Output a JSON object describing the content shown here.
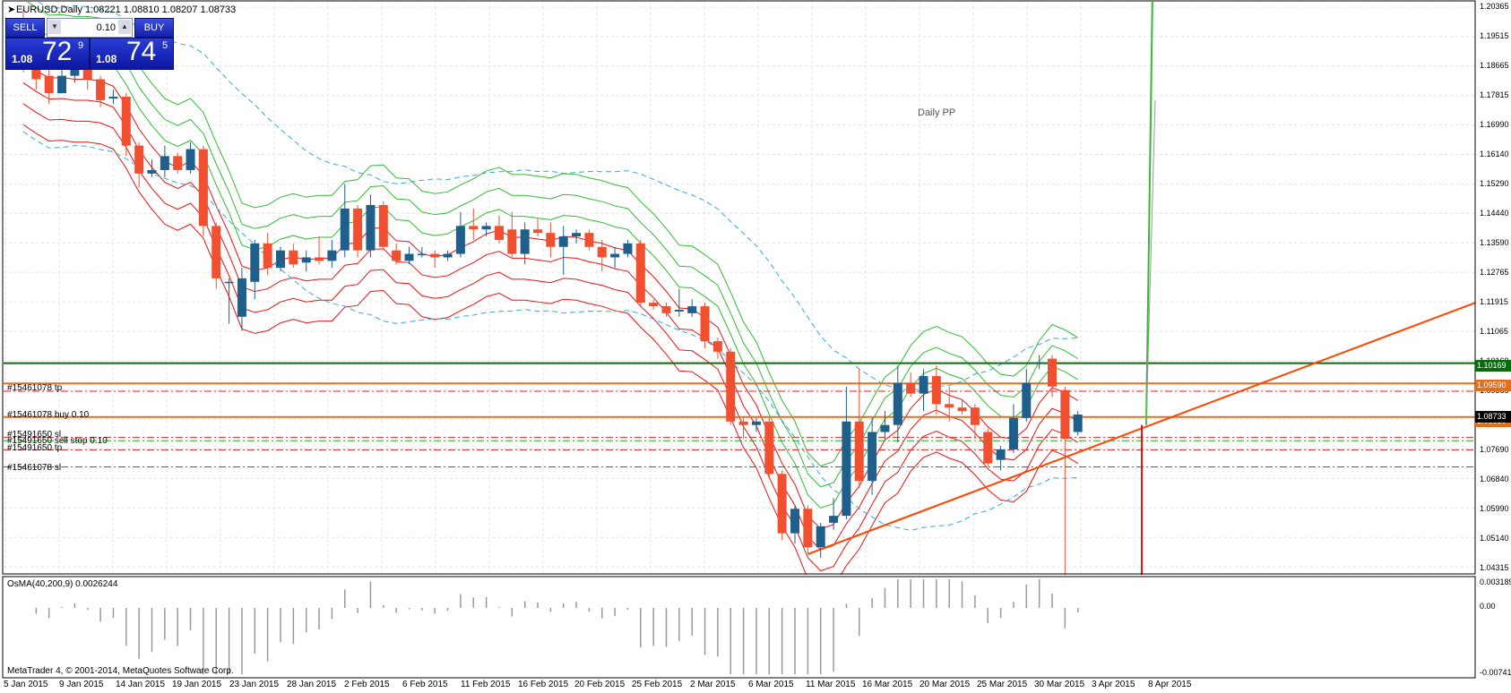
{
  "chart_title": "EURUSD,Daily  1.08221 1.08810 1.08207 1.08733",
  "trade_panel": {
    "sell_label": "SELL",
    "buy_label": "BUY",
    "lot_value": "0.10",
    "bid": {
      "small": "1.08",
      "big": "72",
      "sup": "9"
    },
    "ask": {
      "small": "1.08",
      "big": "74",
      "sup": "5"
    }
  },
  "indicator_label": "Daily PP",
  "order_labels": [
    {
      "text": "#15461078 tp"
    },
    {
      "text": "#15461078 buy 0.10"
    },
    {
      "text": "#15491650 sl"
    },
    {
      "text": "#15491650 sell stop 0.10"
    },
    {
      "text": "#15491650 tp"
    },
    {
      "text": "#15461078 sl"
    }
  ],
  "price_tags": [
    {
      "text": "1.10169",
      "color": "#0a6b0a"
    },
    {
      "text": "1.09590",
      "color": "#e07020"
    },
    {
      "text": "1.08630",
      "color": "#e07020"
    },
    {
      "text": "1.08733",
      "color": "#000000"
    }
  ],
  "y_axis": [
    "1.20365",
    "1.19515",
    "1.18665",
    "1.17815",
    "1.16990",
    "1.16140",
    "1.15290",
    "1.14440",
    "1.13590",
    "1.12765",
    "1.11915",
    "1.11065",
    "1.10169",
    "1.09365",
    "1.08630",
    "1.07690",
    "1.06840",
    "1.05990",
    "1.05140",
    "1.04315"
  ],
  "x_axis": [
    "5 Jan 2015",
    "9 Jan 2015",
    "14 Jan 2015",
    "19 Jan 2015",
    "23 Jan 2015",
    "28 Jan 2015",
    "2 Feb 2015",
    "6 Feb 2015",
    "11 Feb 2015",
    "16 Feb 2015",
    "20 Feb 2015",
    "25 Feb 2015",
    "2 Mar 2015",
    "6 Mar 2015",
    "11 Mar 2015",
    "16 Mar 2015",
    "20 Mar 2015",
    "25 Mar 2015",
    "30 Mar 2015",
    "3 Apr 2015",
    "8 Apr 2015"
  ],
  "oscillator": {
    "title": "OsMA(40,200,9) 0.0026244",
    "y_axis": [
      "0.003189",
      "0.00",
      "-0.007414"
    ]
  },
  "copyright": "MetaTrader 4, © 2001-2014, MetaQuotes Software Corp.",
  "colors": {
    "bull": "#1f5f8b",
    "bear": "#f05030",
    "hline_green": "#0a6b0a",
    "hline_orange": "#e07020",
    "trendline": "#ff4500",
    "band_green": "#33bb33",
    "band_red": "#ee1111",
    "band_blue": "#33aadd"
  },
  "chart_data": {
    "type": "candlestick",
    "title": "EURUSD,Daily",
    "ylim": [
      1.04315,
      1.20365
    ],
    "candles": [
      {
        "o": 1.196,
        "h": 1.203,
        "l": 1.185,
        "c": 1.188
      },
      {
        "o": 1.188,
        "h": 1.19,
        "l": 1.18,
        "c": 1.183
      },
      {
        "o": 1.184,
        "h": 1.187,
        "l": 1.176,
        "c": 1.179
      },
      {
        "o": 1.179,
        "h": 1.186,
        "l": 1.179,
        "c": 1.184
      },
      {
        "o": 1.184,
        "h": 1.188,
        "l": 1.182,
        "c": 1.186
      },
      {
        "o": 1.186,
        "h": 1.188,
        "l": 1.18,
        "c": 1.183
      },
      {
        "o": 1.183,
        "h": 1.184,
        "l": 1.175,
        "c": 1.177
      },
      {
        "o": 1.1775,
        "h": 1.18,
        "l": 1.176,
        "c": 1.178
      },
      {
        "o": 1.178,
        "h": 1.179,
        "l": 1.161,
        "c": 1.164
      },
      {
        "o": 1.164,
        "h": 1.165,
        "l": 1.152,
        "c": 1.156
      },
      {
        "o": 1.156,
        "h": 1.16,
        "l": 1.155,
        "c": 1.157
      },
      {
        "o": 1.157,
        "h": 1.164,
        "l": 1.155,
        "c": 1.161
      },
      {
        "o": 1.161,
        "h": 1.162,
        "l": 1.156,
        "c": 1.157
      },
      {
        "o": 1.157,
        "h": 1.165,
        "l": 1.156,
        "c": 1.163
      },
      {
        "o": 1.163,
        "h": 1.164,
        "l": 1.138,
        "c": 1.141
      },
      {
        "o": 1.141,
        "h": 1.142,
        "l": 1.123,
        "c": 1.126
      },
      {
        "o": 1.125,
        "h": 1.126,
        "l": 1.113,
        "c": 1.125
      },
      {
        "o": 1.115,
        "h": 1.129,
        "l": 1.111,
        "c": 1.126
      },
      {
        "o": 1.125,
        "h": 1.137,
        "l": 1.12,
        "c": 1.136
      },
      {
        "o": 1.136,
        "h": 1.139,
        "l": 1.127,
        "c": 1.129
      },
      {
        "o": 1.129,
        "h": 1.135,
        "l": 1.128,
        "c": 1.134
      },
      {
        "o": 1.134,
        "h": 1.136,
        "l": 1.129,
        "c": 1.13
      },
      {
        "o": 1.1305,
        "h": 1.134,
        "l": 1.128,
        "c": 1.132
      },
      {
        "o": 1.132,
        "h": 1.138,
        "l": 1.13,
        "c": 1.131
      },
      {
        "o": 1.131,
        "h": 1.137,
        "l": 1.129,
        "c": 1.134
      },
      {
        "o": 1.134,
        "h": 1.153,
        "l": 1.132,
        "c": 1.146
      },
      {
        "o": 1.146,
        "h": 1.147,
        "l": 1.132,
        "c": 1.134
      },
      {
        "o": 1.134,
        "h": 1.15,
        "l": 1.132,
        "c": 1.147
      },
      {
        "o": 1.147,
        "h": 1.148,
        "l": 1.134,
        "c": 1.135
      },
      {
        "o": 1.134,
        "h": 1.136,
        "l": 1.13,
        "c": 1.131
      },
      {
        "o": 1.131,
        "h": 1.135,
        "l": 1.13,
        "c": 1.133
      },
      {
        "o": 1.133,
        "h": 1.135,
        "l": 1.132,
        "c": 1.133
      },
      {
        "o": 1.133,
        "h": 1.134,
        "l": 1.129,
        "c": 1.132
      },
      {
        "o": 1.132,
        "h": 1.134,
        "l": 1.131,
        "c": 1.133
      },
      {
        "o": 1.133,
        "h": 1.145,
        "l": 1.132,
        "c": 1.141
      },
      {
        "o": 1.141,
        "h": 1.146,
        "l": 1.137,
        "c": 1.14
      },
      {
        "o": 1.14,
        "h": 1.142,
        "l": 1.138,
        "c": 1.141
      },
      {
        "o": 1.141,
        "h": 1.144,
        "l": 1.136,
        "c": 1.137
      },
      {
        "o": 1.14,
        "h": 1.145,
        "l": 1.132,
        "c": 1.133
      },
      {
        "o": 1.133,
        "h": 1.142,
        "l": 1.13,
        "c": 1.14
      },
      {
        "o": 1.14,
        "h": 1.143,
        "l": 1.138,
        "c": 1.139
      },
      {
        "o": 1.139,
        "h": 1.142,
        "l": 1.132,
        "c": 1.135
      },
      {
        "o": 1.135,
        "h": 1.141,
        "l": 1.127,
        "c": 1.138
      },
      {
        "o": 1.138,
        "h": 1.14,
        "l": 1.136,
        "c": 1.139
      },
      {
        "o": 1.139,
        "h": 1.14,
        "l": 1.134,
        "c": 1.135
      },
      {
        "o": 1.135,
        "h": 1.137,
        "l": 1.128,
        "c": 1.132
      },
      {
        "o": 1.132,
        "h": 1.135,
        "l": 1.129,
        "c": 1.133
      },
      {
        "o": 1.133,
        "h": 1.137,
        "l": 1.132,
        "c": 1.136
      },
      {
        "o": 1.136,
        "h": 1.137,
        "l": 1.118,
        "c": 1.119
      },
      {
        "o": 1.119,
        "h": 1.12,
        "l": 1.117,
        "c": 1.118
      },
      {
        "o": 1.118,
        "h": 1.119,
        "l": 1.115,
        "c": 1.116
      },
      {
        "o": 1.1165,
        "h": 1.123,
        "l": 1.115,
        "c": 1.117
      },
      {
        "o": 1.116,
        "h": 1.12,
        "l": 1.115,
        "c": 1.118
      },
      {
        "o": 1.118,
        "h": 1.119,
        "l": 1.106,
        "c": 1.108
      },
      {
        "o": 1.108,
        "h": 1.109,
        "l": 1.103,
        "c": 1.105
      },
      {
        "o": 1.105,
        "h": 1.106,
        "l": 1.084,
        "c": 1.085
      },
      {
        "o": 1.085,
        "h": 1.086,
        "l": 1.08,
        "c": 1.084
      },
      {
        "o": 1.084,
        "h": 1.086,
        "l": 1.082,
        "c": 1.085
      },
      {
        "o": 1.085,
        "h": 1.086,
        "l": 1.069,
        "c": 1.07
      },
      {
        "o": 1.07,
        "h": 1.071,
        "l": 1.051,
        "c": 1.053
      },
      {
        "o": 1.053,
        "h": 1.061,
        "l": 1.05,
        "c": 1.06
      },
      {
        "o": 1.06,
        "h": 1.061,
        "l": 1.047,
        "c": 1.049
      },
      {
        "o": 1.049,
        "h": 1.056,
        "l": 1.046,
        "c": 1.055
      },
      {
        "o": 1.056,
        "h": 1.063,
        "l": 1.054,
        "c": 1.058
      },
      {
        "o": 1.058,
        "h": 1.095,
        "l": 1.057,
        "c": 1.085
      },
      {
        "o": 1.085,
        "h": 1.1,
        "l": 1.066,
        "c": 1.068
      },
      {
        "o": 1.068,
        "h": 1.086,
        "l": 1.064,
        "c": 1.082
      },
      {
        "o": 1.082,
        "h": 1.088,
        "l": 1.08,
        "c": 1.084
      },
      {
        "o": 1.084,
        "h": 1.101,
        "l": 1.079,
        "c": 1.096
      },
      {
        "o": 1.096,
        "h": 1.099,
        "l": 1.092,
        "c": 1.093
      },
      {
        "o": 1.093,
        "h": 1.1,
        "l": 1.088,
        "c": 1.098
      },
      {
        "o": 1.098,
        "h": 1.101,
        "l": 1.087,
        "c": 1.09
      },
      {
        "o": 1.09,
        "h": 1.095,
        "l": 1.085,
        "c": 1.089
      },
      {
        "o": 1.089,
        "h": 1.091,
        "l": 1.087,
        "c": 1.088
      },
      {
        "o": 1.089,
        "h": 1.09,
        "l": 1.08,
        "c": 1.084
      },
      {
        "o": 1.082,
        "h": 1.083,
        "l": 1.072,
        "c": 1.073
      },
      {
        "o": 1.074,
        "h": 1.078,
        "l": 1.071,
        "c": 1.077
      },
      {
        "o": 1.077,
        "h": 1.09,
        "l": 1.076,
        "c": 1.086
      },
      {
        "o": 1.086,
        "h": 1.1,
        "l": 1.085,
        "c": 1.096
      },
      {
        "o": 1.102,
        "h": 1.104,
        "l": 1.1,
        "c": 1.102
      },
      {
        "o": 1.103,
        "h": 1.104,
        "l": 1.092,
        "c": 1.095
      },
      {
        "o": 1.094,
        "h": 1.095,
        "l": 1.04,
        "c": 1.08
      },
      {
        "o": 1.082,
        "h": 1.088,
        "l": 1.081,
        "c": 1.087
      }
    ]
  }
}
